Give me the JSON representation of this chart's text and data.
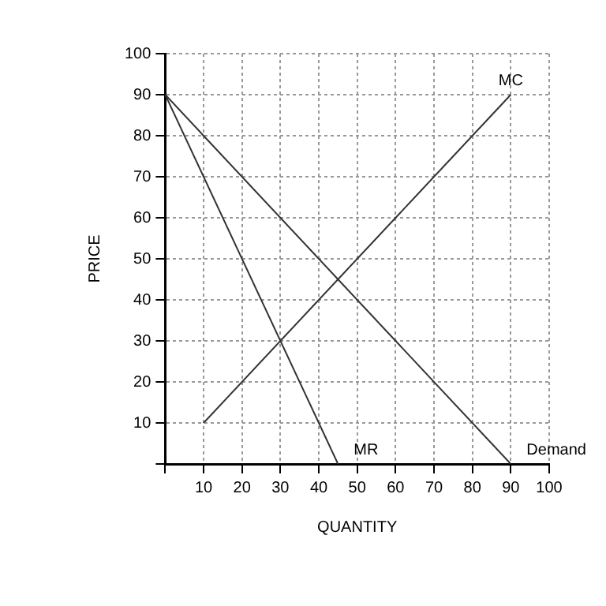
{
  "chart_data": {
    "type": "line",
    "xlabel": "QUANTITY",
    "ylabel": "PRICE",
    "xlim": [
      0,
      100
    ],
    "ylim": [
      0,
      100
    ],
    "xticks": [
      {
        "value": 0,
        "label": null
      },
      10,
      20,
      30,
      40,
      50,
      60,
      70,
      80,
      90,
      100
    ],
    "yticks": [
      {
        "value": 0,
        "label": null
      },
      10,
      20,
      30,
      40,
      50,
      60,
      70,
      80,
      90,
      100
    ],
    "grid": true,
    "legend": false,
    "marker": "none",
    "line_style": "solid",
    "series": [
      {
        "name": "MC",
        "color": "#333333",
        "x": [
          10,
          90
        ],
        "values": [
          10,
          90
        ]
      },
      {
        "name": "MR",
        "color": "#333333",
        "x": [
          0,
          45
        ],
        "values": [
          90,
          0
        ]
      },
      {
        "name": "Demand",
        "color": "#333333",
        "x": [
          0,
          90
        ],
        "values": [
          90,
          0
        ]
      }
    ]
  }
}
